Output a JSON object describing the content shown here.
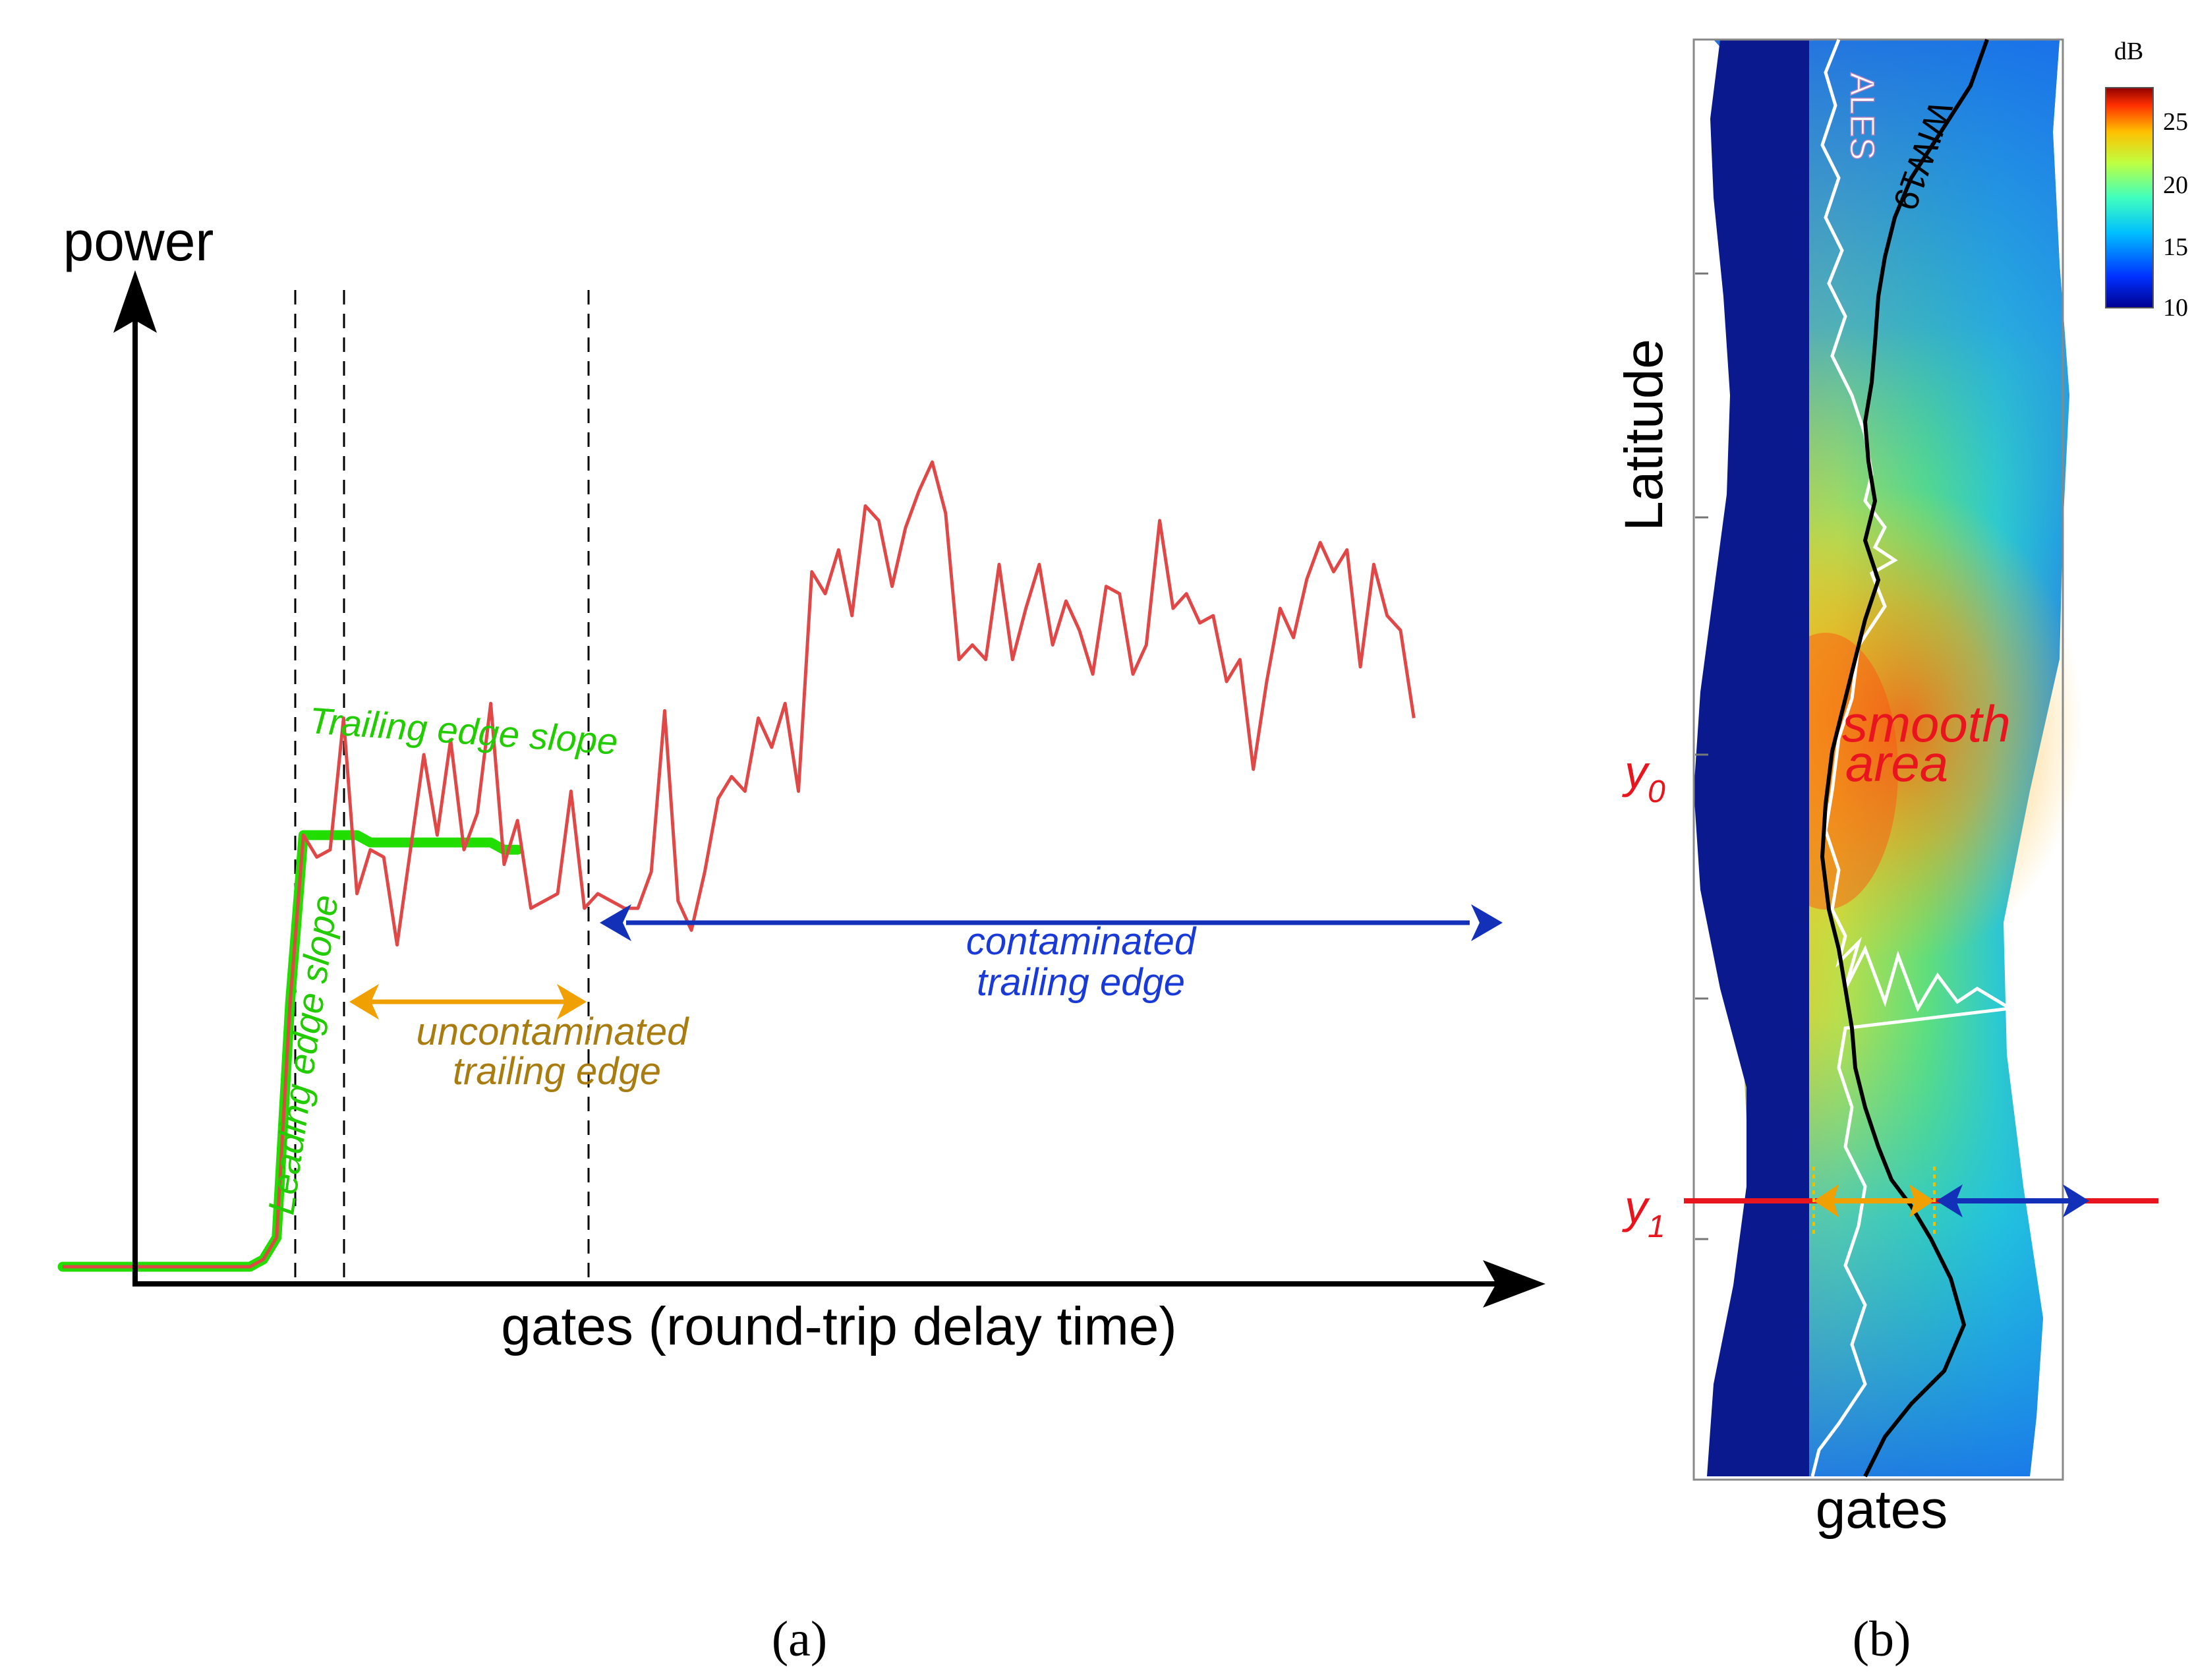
{
  "panel_a": {
    "y_axis_label": "power",
    "x_axis_label": "gates (round-trip delay time)",
    "leading_edge_label": "Leading edge slope",
    "trailing_slope_label": "Trailing edge slope",
    "uncontaminated_label_line1": "uncontaminated",
    "uncontaminated_label_line2": "trailing edge",
    "contaminated_label_line1": "contaminated",
    "contaminated_label_line2": "trailing edge",
    "caption": "(a)"
  },
  "panel_b": {
    "y_axis_label": "Latitude",
    "x_axis_label": "gates",
    "retracker_ales": "ALES",
    "retracker_wiw": "WIW19",
    "smooth_label_line1": "smooth",
    "smooth_label_line2": "area",
    "y0_label": "y0",
    "y1_label": "y1",
    "colorbar_unit": "dB",
    "colorbar_ticks": [
      "25",
      "20",
      "15",
      "10"
    ],
    "caption": "(b)"
  },
  "colors": {
    "waveform": "#e04848",
    "model": "#22dd00",
    "uncontaminated": "#f0a000",
    "contaminated": "#1230b8",
    "label_red": "#e8141e"
  },
  "chart_data": {
    "type": "line",
    "title": "",
    "xlabel": "gates (round-trip delay time)",
    "ylabel": "power",
    "series": [
      {
        "name": "waveform",
        "values": [
          0.04,
          0.04,
          0.04,
          0.04,
          0.04,
          0.04,
          0.04,
          0.04,
          0.04,
          0.04,
          0.04,
          0.04,
          0.04,
          0.04,
          0.04,
          0.05,
          0.08,
          0.4,
          0.63,
          0.6,
          0.61,
          0.79,
          0.55,
          0.61,
          0.6,
          0.48,
          0.61,
          0.74,
          0.63,
          0.76,
          0.61,
          0.66,
          0.81,
          0.59,
          0.65,
          0.53,
          0.54,
          0.55,
          0.69,
          0.53,
          0.55,
          0.54,
          0.53,
          0.53,
          0.58,
          0.8,
          0.54,
          0.5,
          0.58,
          0.68,
          0.71,
          0.69,
          0.79,
          0.75,
          0.81,
          0.69,
          0.99,
          0.96,
          1.02,
          0.93,
          1.08,
          1.06,
          0.97,
          1.05,
          1.1,
          1.14,
          1.07,
          0.87,
          0.89,
          0.87,
          1.0,
          0.87,
          0.94,
          1.0,
          0.89,
          0.95,
          0.91,
          0.85,
          0.97,
          0.96,
          0.85,
          0.89,
          1.06,
          0.94,
          0.96,
          0.92,
          0.93,
          0.84,
          0.87,
          0.72,
          0.84,
          0.94,
          0.9,
          0.98,
          1.03,
          0.99,
          1.02,
          0.86,
          1.0,
          0.93,
          0.91,
          0.79
        ]
      },
      {
        "name": "model",
        "values": [
          0.04,
          0.04,
          0.04,
          0.04,
          0.04,
          0.04,
          0.04,
          0.04,
          0.04,
          0.04,
          0.04,
          0.04,
          0.04,
          0.04,
          0.04,
          0.05,
          0.08,
          0.4,
          0.63,
          0.63,
          0.63,
          0.63,
          0.63,
          0.62,
          0.62,
          0.62,
          0.62,
          0.62,
          0.62,
          0.62,
          0.62,
          0.62,
          0.62,
          0.61,
          0.61
        ]
      }
    ]
  }
}
